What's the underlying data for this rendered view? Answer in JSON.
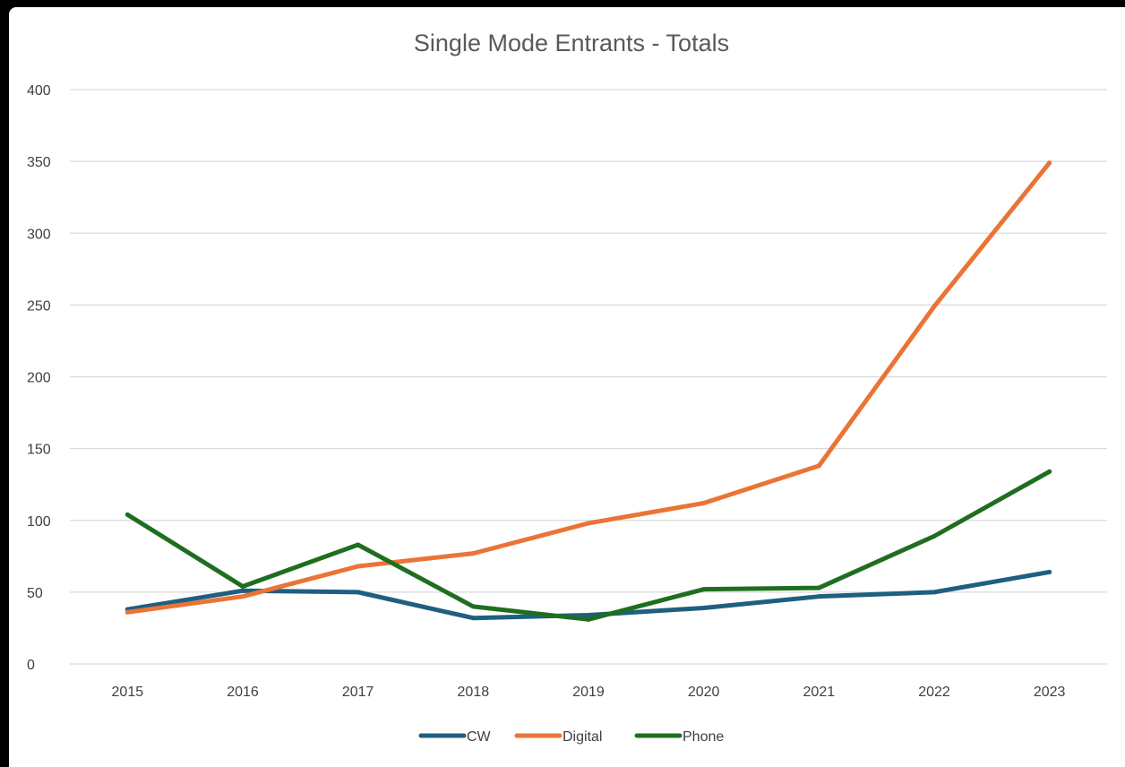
{
  "chart_data": {
    "type": "line",
    "title": "Single Mode Entrants - Totals",
    "xlabel": "",
    "ylabel": "",
    "categories": [
      "2015",
      "2016",
      "2017",
      "2018",
      "2019",
      "2020",
      "2021",
      "2022",
      "2023"
    ],
    "ylim": [
      0,
      400
    ],
    "yticks": [
      0,
      50,
      100,
      150,
      200,
      250,
      300,
      350,
      400
    ],
    "grid": true,
    "legend_position": "bottom",
    "series": [
      {
        "name": "CW",
        "color": "#1f5f80",
        "values": [
          38,
          51,
          50,
          32,
          34,
          39,
          47,
          50,
          64
        ]
      },
      {
        "name": "Digital",
        "color": "#ea7436",
        "values": [
          36,
          47,
          68,
          77,
          98,
          112,
          138,
          249,
          349
        ]
      },
      {
        "name": "Phone",
        "color": "#1f6e20",
        "values": [
          104,
          54,
          83,
          40,
          31,
          52,
          53,
          89,
          134
        ]
      }
    ]
  }
}
